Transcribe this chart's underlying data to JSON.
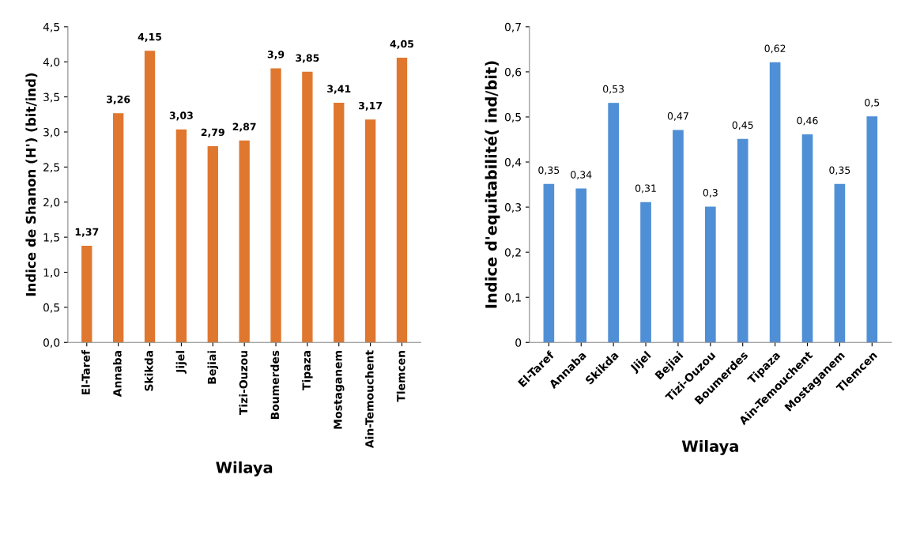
{
  "chart_data": [
    {
      "type": "bar",
      "xlabel": "Wilaya",
      "ylabel": "Indice de Shanon (H') (bit/ind)",
      "categories": [
        "El-Taref",
        "Annaba",
        "Skikda",
        "Jijel",
        "Bejiai",
        "Tizi-Ouzou",
        "Boumerdes",
        "Tipaza",
        "Mostaganem",
        "Ain-Temouchent",
        "Tlemcen"
      ],
      "values": [
        1.37,
        3.26,
        4.15,
        3.03,
        2.79,
        2.87,
        3.9,
        3.85,
        3.41,
        3.17,
        4.05
      ],
      "color": "#e0772f",
      "value_labels": [
        "1,37",
        "3,26",
        "4,15",
        "3,03",
        "2,79",
        "2,87",
        "3,9",
        "3,85",
        "3,41",
        "3,17",
        "4,05"
      ],
      "ylim": [
        0,
        4.5
      ],
      "yticks": [
        {
          "value": 0,
          "label": "0,0"
        },
        {
          "value": 0.5,
          "label": "0,5"
        },
        {
          "value": 1,
          "label": "1,0"
        },
        {
          "value": 1.5,
          "label": "1,5"
        },
        {
          "value": 2,
          "label": "2,0"
        },
        {
          "value": 2.5,
          "label": "2,5"
        },
        {
          "value": 3,
          "label": "3,0"
        },
        {
          "value": 3.5,
          "label": "3,5"
        },
        {
          "value": 4,
          "label": "4,0"
        },
        {
          "value": 4.5,
          "label": "4,5"
        }
      ],
      "grid": false
    },
    {
      "type": "bar",
      "xlabel": "Wilaya",
      "ylabel": "Indice d'equitabilité( ind/bit)",
      "categories": [
        "El-Taref",
        "Annaba",
        "Skikda",
        "Jijel",
        "Bejiai",
        "Tizi-Ouzou",
        "Boumerdes",
        "Tipaza",
        "Ain-Temouchent",
        "Mostaganem",
        "Tlemcen"
      ],
      "values": [
        0.35,
        0.34,
        0.53,
        0.31,
        0.47,
        0.3,
        0.45,
        0.62,
        0.46,
        0.35,
        0.5
      ],
      "color": "#4f8fd6",
      "value_labels": [
        "0,35",
        "0,34",
        "0,53",
        "0,31",
        "0,47",
        "0,3",
        "0,45",
        "0,62",
        "0,46",
        "0,35",
        "0,5"
      ],
      "ylim": [
        0,
        0.7
      ],
      "yticks": [
        0,
        {
          "value": 0.1,
          "label": "0,1"
        },
        {
          "value": 0.2,
          "label": "0,2"
        },
        {
          "value": 0.3,
          "label": "0,3"
        },
        {
          "value": 0.4,
          "label": "0,4"
        },
        {
          "value": 0.5,
          "label": "0,5"
        },
        {
          "value": 0.6,
          "label": "0,6"
        },
        {
          "value": 0.7,
          "label": "0,7"
        }
      ],
      "grid": false
    }
  ]
}
